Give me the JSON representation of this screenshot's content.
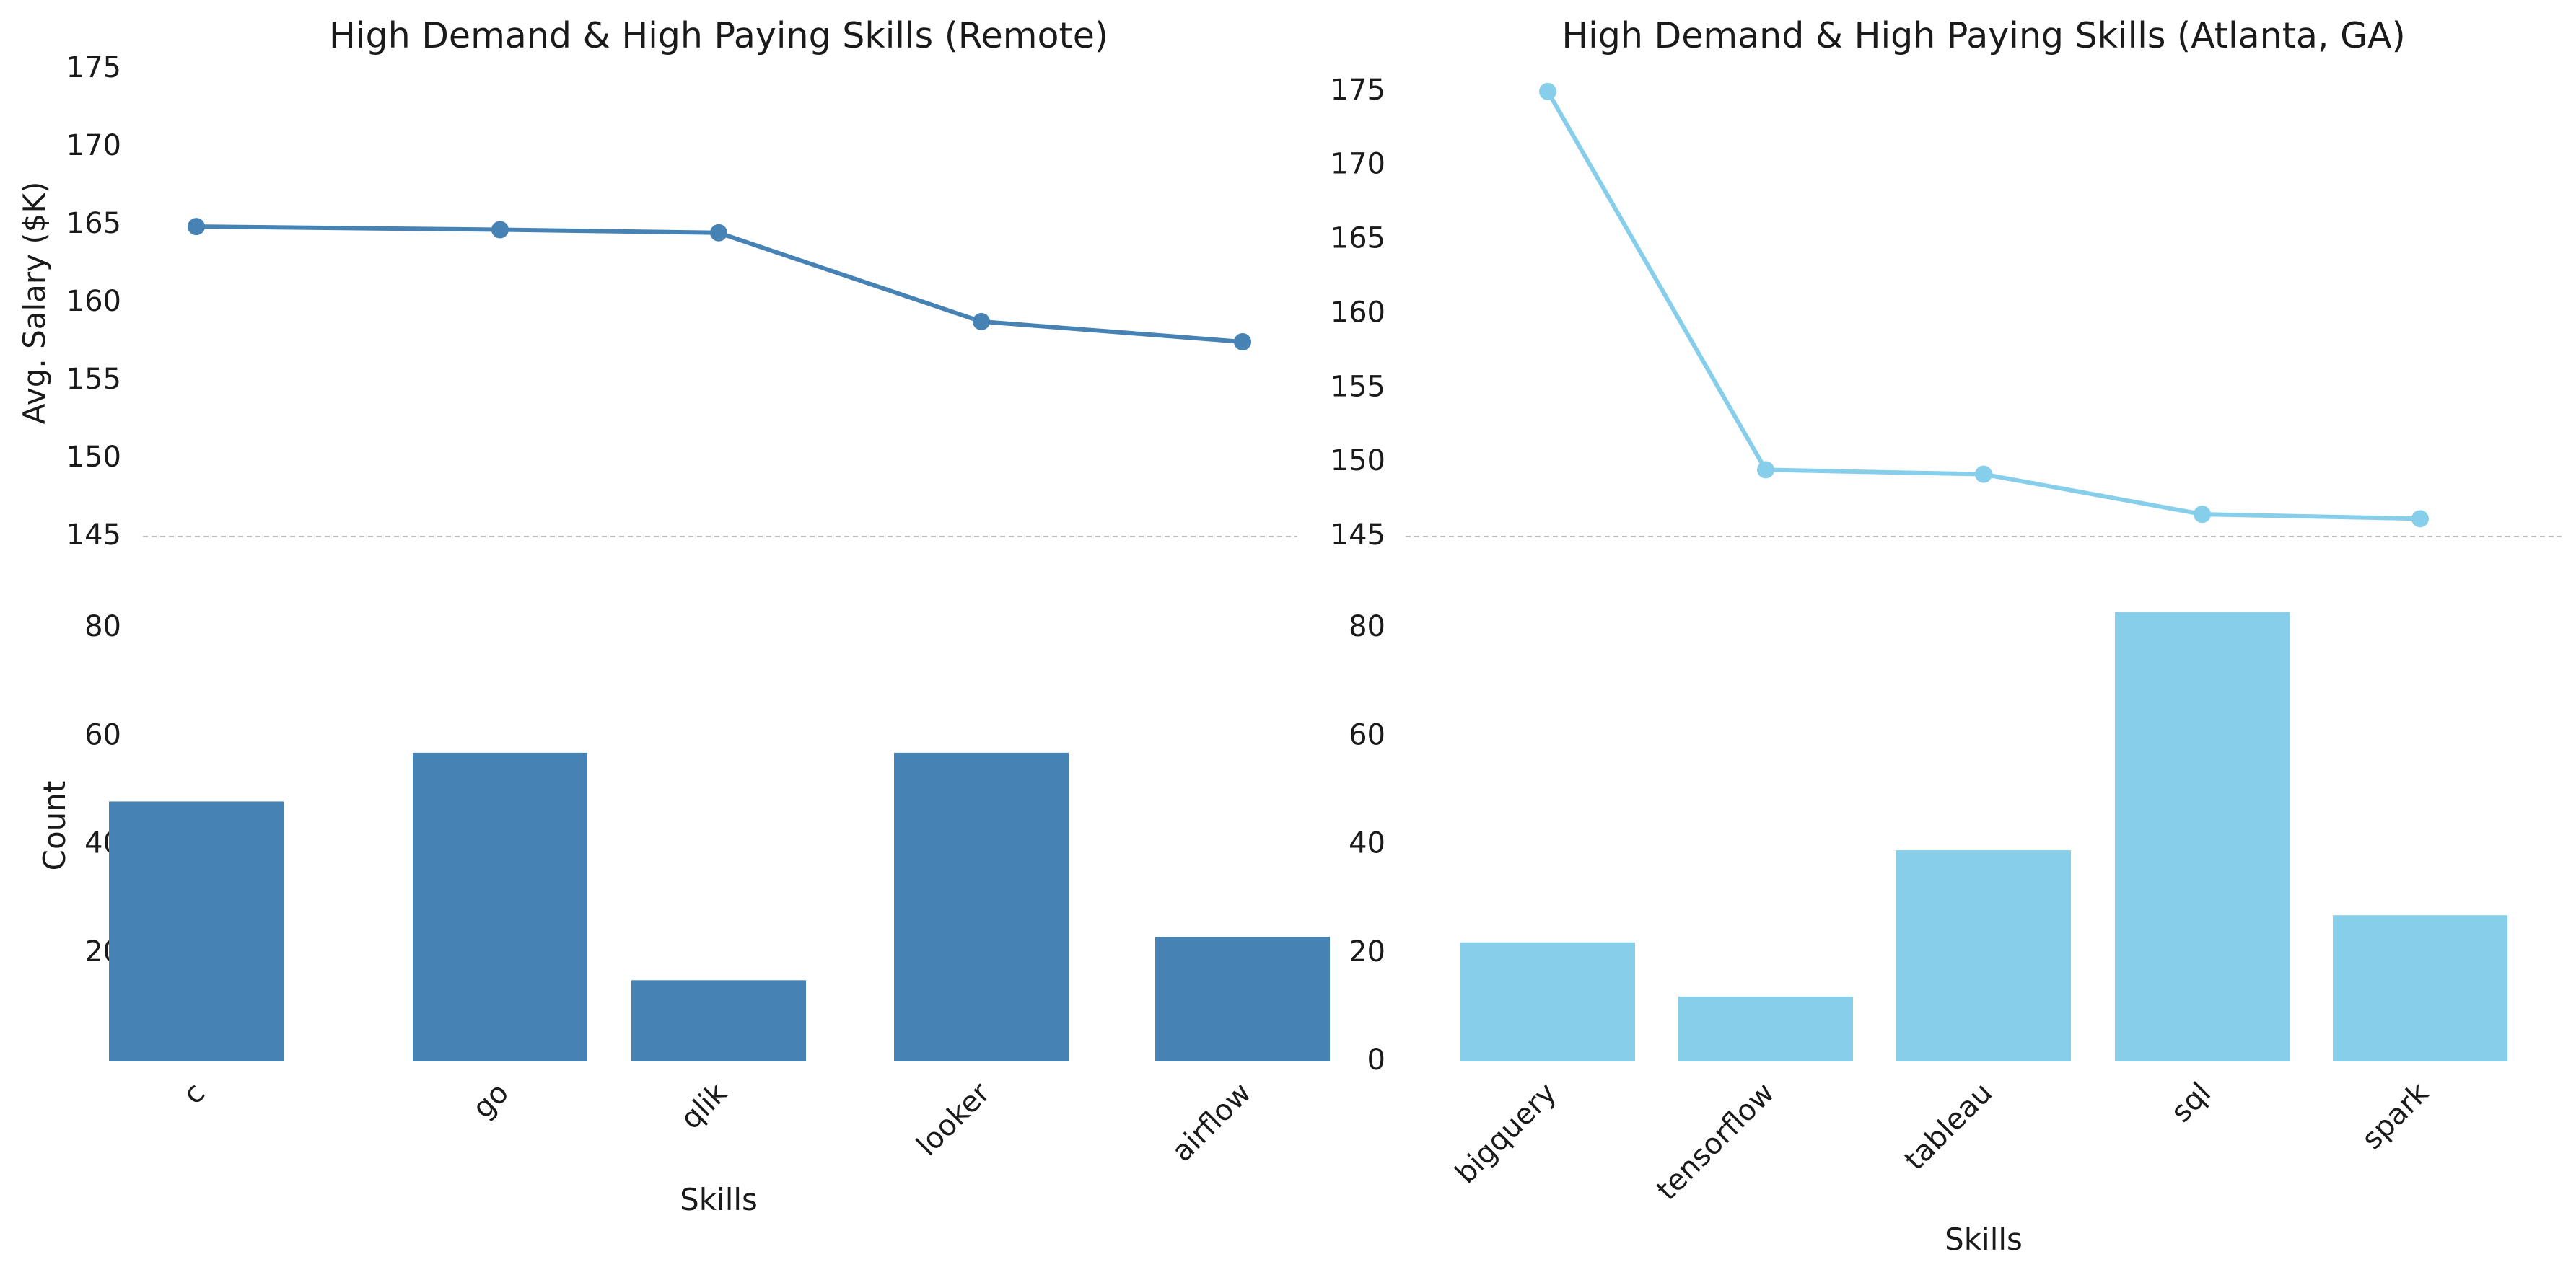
{
  "chart_data": [
    {
      "panel": "remote",
      "type": "line+bar",
      "title": "High Demand & High Paying Skills (Remote)",
      "categories": [
        "c",
        "go",
        "qlik",
        "looker",
        "airflow"
      ],
      "xlabel": "Skills",
      "color": "#4682b4",
      "line": {
        "ylabel": "Avg. Salary ($K)",
        "values": [
          164.9,
          164.7,
          164.5,
          158.8,
          157.5
        ],
        "ylim": [
          145,
          175
        ],
        "yticks": [
          145,
          150,
          155,
          160,
          165,
          170,
          175
        ]
      },
      "bar": {
        "ylabel": "Count",
        "values": [
          48,
          57,
          15,
          57,
          23
        ],
        "ylim": [
          0,
          90
        ],
        "yticks": [
          20,
          40,
          60,
          80
        ]
      }
    },
    {
      "panel": "atlanta",
      "type": "line+bar",
      "title": "High Demand & High Paying Skills (Atlanta, GA)",
      "categories": [
        "bigquery",
        "tensorflow",
        "tableau",
        "sql",
        "spark"
      ],
      "xlabel": "Skills",
      "color": "#87ceeb",
      "line": {
        "ylabel": "",
        "values": [
          175.0,
          149.5,
          149.2,
          146.5,
          146.2
        ],
        "ylim": [
          145,
          176.5
        ],
        "yticks": [
          145,
          150,
          155,
          160,
          165,
          170,
          175
        ]
      },
      "bar": {
        "ylabel": "",
        "values": [
          22,
          12,
          39,
          83,
          27
        ],
        "ylim": [
          0,
          90
        ],
        "yticks": [
          0,
          20,
          40,
          60,
          80
        ]
      }
    }
  ]
}
